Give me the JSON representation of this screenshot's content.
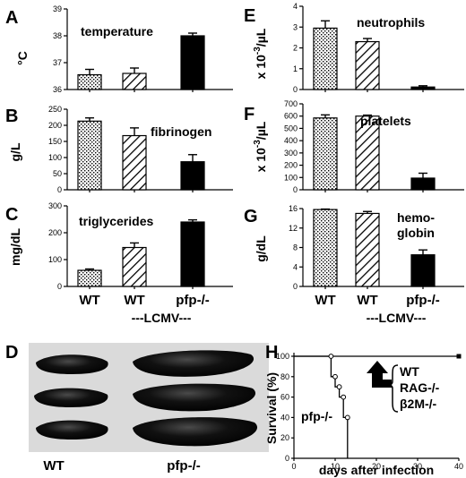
{
  "figure": {
    "groups": [
      "---LCMV---",
      "---LCMV---"
    ],
    "spleen": {
      "label": "D",
      "left_caption": "WT",
      "right_caption": "pfp-/-"
    }
  },
  "colors": {
    "black": "#000000",
    "white": "#ffffff",
    "photo_bg": "#d9d9d9"
  },
  "chart_data": [
    {
      "id": "A",
      "type": "bar",
      "label": "A",
      "annotation": "temperature",
      "ylabel": "°C",
      "ylim": [
        36,
        39
      ],
      "yticks": [
        "36",
        "37",
        "38",
        "39"
      ],
      "tick_values": [
        36,
        37,
        38,
        39
      ],
      "categories": [
        "WT",
        "WT",
        "pfp-/-"
      ],
      "patterns": [
        "dots",
        "hatch",
        "solid"
      ],
      "values": [
        36.55,
        36.6,
        38.0
      ],
      "errors": [
        0.2,
        0.2,
        0.1
      ]
    },
    {
      "id": "B",
      "type": "bar",
      "label": "B",
      "annotation": "fibrinogen",
      "ylabel": "g/L",
      "ylim": [
        0,
        250
      ],
      "yticks": [
        "0",
        "50",
        "100",
        "150",
        "200",
        "250"
      ],
      "tick_values": [
        0,
        50,
        100,
        150,
        200,
        250
      ],
      "categories": [
        "WT",
        "WT",
        "pfp-/-"
      ],
      "patterns": [
        "dots",
        "hatch",
        "solid"
      ],
      "values": [
        213,
        168,
        87
      ],
      "errors": [
        10,
        24,
        22
      ]
    },
    {
      "id": "C",
      "type": "bar",
      "label": "C",
      "annotation": "triglycerides",
      "ylabel": "mg/dL",
      "ylim": [
        0,
        300
      ],
      "yticks": [
        "0",
        "100",
        "200",
        "300"
      ],
      "tick_values": [
        0,
        100,
        200,
        300
      ],
      "categories": [
        "WT",
        "WT",
        "pfp-/-"
      ],
      "patterns": [
        "dots",
        "hatch",
        "solid"
      ],
      "values": [
        60,
        145,
        240
      ],
      "errors": [
        5,
        17,
        8
      ]
    },
    {
      "id": "E",
      "type": "bar",
      "label": "E",
      "annotation": "neutrophils",
      "ylabel": "x 10-3/µL",
      "ylim": [
        0,
        4
      ],
      "yticks": [
        "0",
        "1",
        "2",
        "3",
        "4"
      ],
      "tick_values": [
        0,
        1,
        2,
        3,
        4
      ],
      "categories": [
        "WT",
        "WT",
        "pfp-/-"
      ],
      "patterns": [
        "dots",
        "hatch",
        "solid"
      ],
      "values": [
        2.95,
        2.3,
        0.12
      ],
      "errors": [
        0.35,
        0.15,
        0.06
      ]
    },
    {
      "id": "F",
      "type": "bar",
      "label": "F",
      "annotation": "platelets",
      "ylabel": "x 10-3/µL",
      "ylim": [
        0,
        700
      ],
      "yticks": [
        "0",
        "100",
        "200",
        "300",
        "400",
        "500",
        "600",
        "700"
      ],
      "tick_values": [
        0,
        100,
        200,
        300,
        400,
        500,
        600,
        700
      ],
      "categories": [
        "WT",
        "WT",
        "pfp-/-"
      ],
      "patterns": [
        "dots",
        "hatch",
        "solid"
      ],
      "values": [
        585,
        600,
        95
      ],
      "errors": [
        25,
        8,
        40
      ]
    },
    {
      "id": "G",
      "type": "bar",
      "label": "G",
      "annotation": "hemo-\nglobin",
      "ylabel": "g/dL",
      "ylim": [
        0,
        16
      ],
      "yticks": [
        "0",
        "4",
        "8",
        "12",
        "16"
      ],
      "tick_values": [
        0,
        4,
        8,
        12,
        16
      ],
      "categories": [
        "WT",
        "WT",
        "pfp-/-"
      ],
      "patterns": [
        "dots",
        "hatch",
        "solid"
      ],
      "values": [
        15.8,
        15.0,
        6.5
      ],
      "errors": [
        0.1,
        0.4,
        1.0
      ]
    },
    {
      "id": "H",
      "type": "line",
      "label": "H",
      "ylabel": "Survival (%)",
      "xlabel": "days after infection",
      "xlim": [
        0,
        40
      ],
      "ylim": [
        0,
        100
      ],
      "xticks": [
        "0",
        "10",
        "20",
        "30",
        "40"
      ],
      "xtick_values": [
        0,
        10,
        20,
        30,
        40
      ],
      "yticks": [
        "0",
        "20",
        "40",
        "60",
        "80",
        "100"
      ],
      "ytick_values": [
        0,
        20,
        40,
        60,
        80,
        100
      ],
      "series": [
        {
          "name": "pfp-/-",
          "x": [
            0,
            9,
            9,
            10,
            10,
            11,
            11,
            12,
            12,
            13,
            13
          ],
          "y": [
            100,
            100,
            80,
            80,
            70,
            70,
            60,
            60,
            40,
            40,
            0
          ]
        },
        {
          "x": [
            0,
            40
          ],
          "y": [
            100,
            100
          ]
        }
      ],
      "legend_lines": [
        "WT",
        "RAG-/-",
        "β2M-/-"
      ]
    }
  ]
}
